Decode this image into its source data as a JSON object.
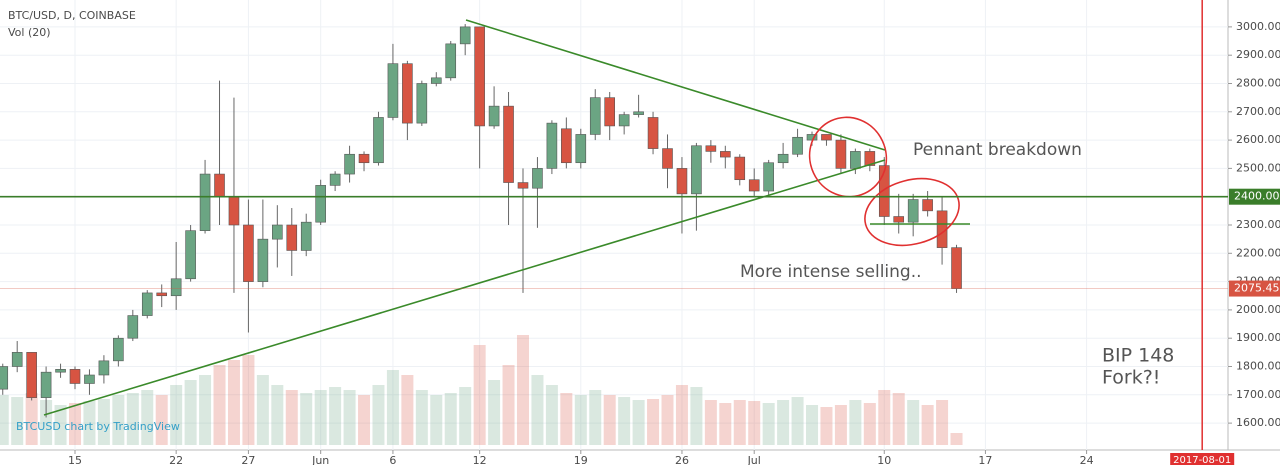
{
  "chart_data": {
    "type": "candlestick",
    "title": "BTC/USD, D, COINBASE",
    "volume_label": "Vol (20)",
    "watermark": "BTCUSD chart by TradingView",
    "annotations": [
      "Pennant breakdown",
      "More intense selling..",
      "BIP 148",
      "Fork?!"
    ],
    "x": [
      "2017-05-10",
      "2017-05-11",
      "2017-05-12",
      "2017-05-13",
      "2017-05-14",
      "2017-05-15",
      "2017-05-16",
      "2017-05-17",
      "2017-05-18",
      "2017-05-19",
      "2017-05-20",
      "2017-05-21",
      "2017-05-22",
      "2017-05-23",
      "2017-05-24",
      "2017-05-25",
      "2017-05-26",
      "2017-05-27",
      "2017-05-28",
      "2017-05-29",
      "2017-05-30",
      "2017-05-31",
      "2017-06-01",
      "2017-06-02",
      "2017-06-03",
      "2017-06-04",
      "2017-06-05",
      "2017-06-06",
      "2017-06-07",
      "2017-06-08",
      "2017-06-09",
      "2017-06-10",
      "2017-06-11",
      "2017-06-12",
      "2017-06-13",
      "2017-06-14",
      "2017-06-15",
      "2017-06-16",
      "2017-06-17",
      "2017-06-18",
      "2017-06-19",
      "2017-06-20",
      "2017-06-21",
      "2017-06-22",
      "2017-06-23",
      "2017-06-24",
      "2017-06-25",
      "2017-06-26",
      "2017-06-27",
      "2017-06-28",
      "2017-06-29",
      "2017-06-30",
      "2017-07-01",
      "2017-07-02",
      "2017-07-03",
      "2017-07-04",
      "2017-07-05",
      "2017-07-06",
      "2017-07-07",
      "2017-07-08",
      "2017-07-09",
      "2017-07-10",
      "2017-07-11",
      "2017-07-12",
      "2017-07-13",
      "2017-07-14",
      "2017-07-15"
    ],
    "open": [
      1720,
      1800,
      1850,
      1690,
      1780,
      1790,
      1740,
      1770,
      1820,
      1900,
      1980,
      2060,
      2050,
      2110,
      2280,
      2480,
      2400,
      2300,
      2100,
      2250,
      2300,
      2210,
      2310,
      2440,
      2480,
      2550,
      2520,
      2680,
      2870,
      2660,
      2800,
      2820,
      2940,
      3000,
      2650,
      2720,
      2450,
      2430,
      2500,
      2640,
      2520,
      2620,
      2750,
      2650,
      2690,
      2680,
      2570,
      2500,
      2410,
      2580,
      2560,
      2540,
      2460,
      2420,
      2520,
      2550,
      2600,
      2620,
      2600,
      2500,
      2560,
      2510,
      2330,
      2310,
      2390,
      2350,
      2220
    ],
    "high": [
      1810,
      1890,
      1850,
      1800,
      1810,
      1800,
      1790,
      1840,
      1910,
      2000,
      2070,
      2090,
      2240,
      2300,
      2530,
      2810,
      2750,
      2390,
      2390,
      2370,
      2360,
      2340,
      2460,
      2490,
      2580,
      2560,
      2700,
      2940,
      2880,
      2810,
      2840,
      2950,
      3010,
      3000,
      2790,
      2770,
      2500,
      2540,
      2670,
      2680,
      2640,
      2780,
      2770,
      2700,
      2760,
      2700,
      2620,
      2540,
      2590,
      2600,
      2580,
      2550,
      2500,
      2530,
      2590,
      2640,
      2630,
      2620,
      2620,
      2570,
      2570,
      2540,
      2410,
      2410,
      2420,
      2400,
      2230
    ],
    "low": [
      1700,
      1780,
      1680,
      1620,
      1760,
      1720,
      1700,
      1740,
      1800,
      1890,
      1970,
      2010,
      2000,
      2100,
      2270,
      2300,
      2060,
      1920,
      2080,
      2150,
      2120,
      2190,
      2300,
      2420,
      2450,
      2490,
      2510,
      2670,
      2600,
      2650,
      2790,
      2810,
      2900,
      2500,
      2640,
      2300,
      2060,
      2290,
      2480,
      2500,
      2500,
      2600,
      2600,
      2620,
      2680,
      2550,
      2430,
      2270,
      2280,
      2520,
      2500,
      2440,
      2400,
      2400,
      2500,
      2540,
      2580,
      2580,
      2480,
      2480,
      2490,
      2300,
      2270,
      2260,
      2330,
      2160,
      2060
    ],
    "close": [
      1800,
      1850,
      1690,
      1780,
      1790,
      1740,
      1770,
      1820,
      1900,
      1980,
      2060,
      2050,
      2110,
      2280,
      2480,
      2400,
      2300,
      2100,
      2250,
      2300,
      2210,
      2310,
      2440,
      2480,
      2550,
      2520,
      2680,
      2870,
      2660,
      2800,
      2820,
      2940,
      3000,
      2650,
      2720,
      2450,
      2430,
      2500,
      2660,
      2520,
      2620,
      2750,
      2650,
      2690,
      2700,
      2570,
      2500,
      2410,
      2580,
      2560,
      2540,
      2460,
      2420,
      2520,
      2550,
      2610,
      2620,
      2600,
      2500,
      2560,
      2510,
      2330,
      2310,
      2390,
      2350,
      2220,
      2075.45
    ],
    "volume": [
      50,
      48,
      52,
      45,
      40,
      42,
      44,
      46,
      50,
      52,
      55,
      50,
      60,
      65,
      70,
      80,
      85,
      90,
      70,
      60,
      55,
      52,
      55,
      58,
      55,
      50,
      60,
      75,
      70,
      55,
      50,
      52,
      58,
      100,
      65,
      80,
      110,
      70,
      60,
      52,
      50,
      55,
      50,
      48,
      45,
      46,
      50,
      60,
      58,
      45,
      42,
      45,
      44,
      42,
      45,
      48,
      40,
      38,
      40,
      45,
      42,
      55,
      52,
      45,
      40,
      45,
      12
    ],
    "up_color": "#6ba583",
    "down_color": "#d75442",
    "ylim": [
      1505,
      3095
    ],
    "xlim": [
      "2017-05-10",
      "2017-08-05"
    ],
    "yticks": [
      {
        "value": 1600,
        "label": "1600.00"
      },
      {
        "value": 1700,
        "label": "1700.00"
      },
      {
        "value": 1800,
        "label": "1800.00"
      },
      {
        "value": 1900,
        "label": "1900.00"
      },
      {
        "value": 2000,
        "label": "2000.00"
      },
      {
        "value": 2100,
        "label": "2100.00"
      },
      {
        "value": 2200,
        "label": "2200.00"
      },
      {
        "value": 2300,
        "label": "2300.00"
      },
      {
        "value": 2500,
        "label": "2500.00"
      },
      {
        "value": 2600,
        "label": "2600.00"
      },
      {
        "value": 2700,
        "label": "2700.00"
      },
      {
        "value": 2800,
        "label": "2800.00"
      },
      {
        "value": 2900,
        "label": "2900.00"
      },
      {
        "value": 3000,
        "label": "3000.00"
      }
    ],
    "xticks": [
      {
        "value": "2017-05-15",
        "label": "15"
      },
      {
        "value": "2017-05-22",
        "label": "22"
      },
      {
        "value": "2017-05-27",
        "label": "27"
      },
      {
        "value": "2017-06-01",
        "label": "Jun"
      },
      {
        "value": "2017-06-06",
        "label": "6"
      },
      {
        "value": "2017-06-12",
        "label": "12"
      },
      {
        "value": "2017-06-19",
        "label": "19"
      },
      {
        "value": "2017-06-26",
        "label": "26"
      },
      {
        "value": "2017-07-01",
        "label": "Jul"
      },
      {
        "value": "2017-07-10",
        "label": "10"
      },
      {
        "value": "2017-07-17",
        "label": "17"
      },
      {
        "value": "2017-07-24",
        "label": "24"
      }
    ],
    "hline": {
      "value": 2400,
      "label": "2400.00",
      "color": "#3a7d2a"
    },
    "last_price": {
      "value": 2075.45,
      "label": "2075.45"
    },
    "x_marker": {
      "value": "2017-08-01",
      "label": "2017-08-01",
      "color": "#e03030"
    },
    "grid": true
  }
}
